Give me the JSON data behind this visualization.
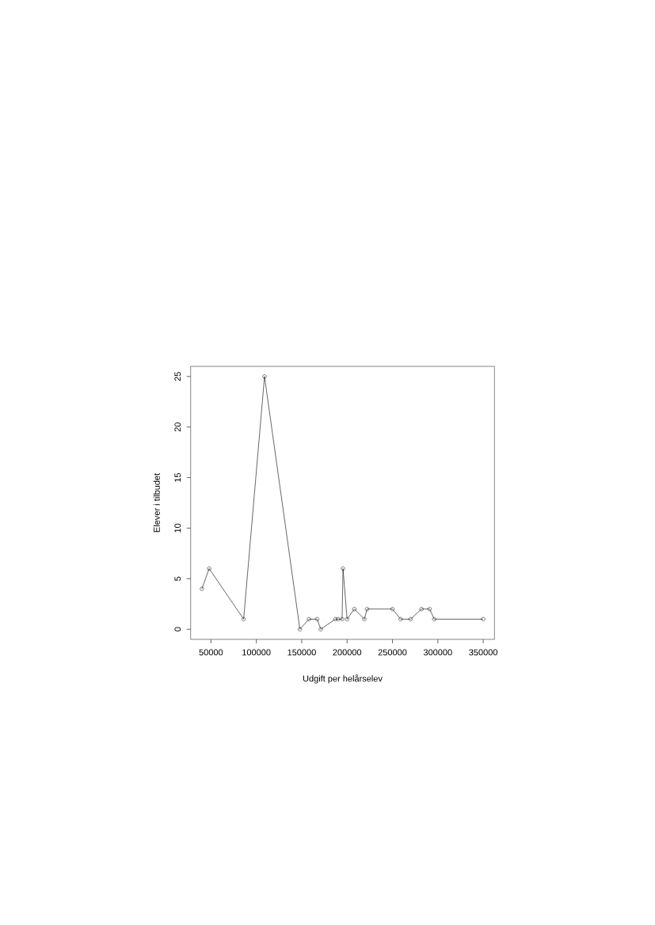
{
  "chart_data": {
    "type": "line",
    "xlabel": "Udgift per helårselev",
    "ylabel": "Elever i tilbudet",
    "x": [
      40000,
      48000,
      86000,
      109000,
      148000,
      158000,
      167000,
      171000,
      187000,
      190000,
      194500,
      195500,
      200000,
      208000,
      219000,
      222000,
      250000,
      259000,
      270000,
      282000,
      291000,
      296000,
      350000
    ],
    "values": [
      4,
      6,
      1,
      25,
      0,
      1,
      1,
      0,
      1,
      1,
      1,
      6,
      1,
      2,
      1,
      2,
      2,
      1,
      1,
      2,
      2,
      1,
      1
    ],
    "color": "#000000",
    "xlim": [
      27600,
      362400
    ],
    "ylim": [
      -1,
      26
    ],
    "xticks": [
      50000,
      100000,
      150000,
      200000,
      250000,
      300000,
      350000
    ],
    "yticks": [
      0,
      5,
      10,
      15,
      20,
      25
    ],
    "marker": "circle",
    "line_style": "solid"
  }
}
